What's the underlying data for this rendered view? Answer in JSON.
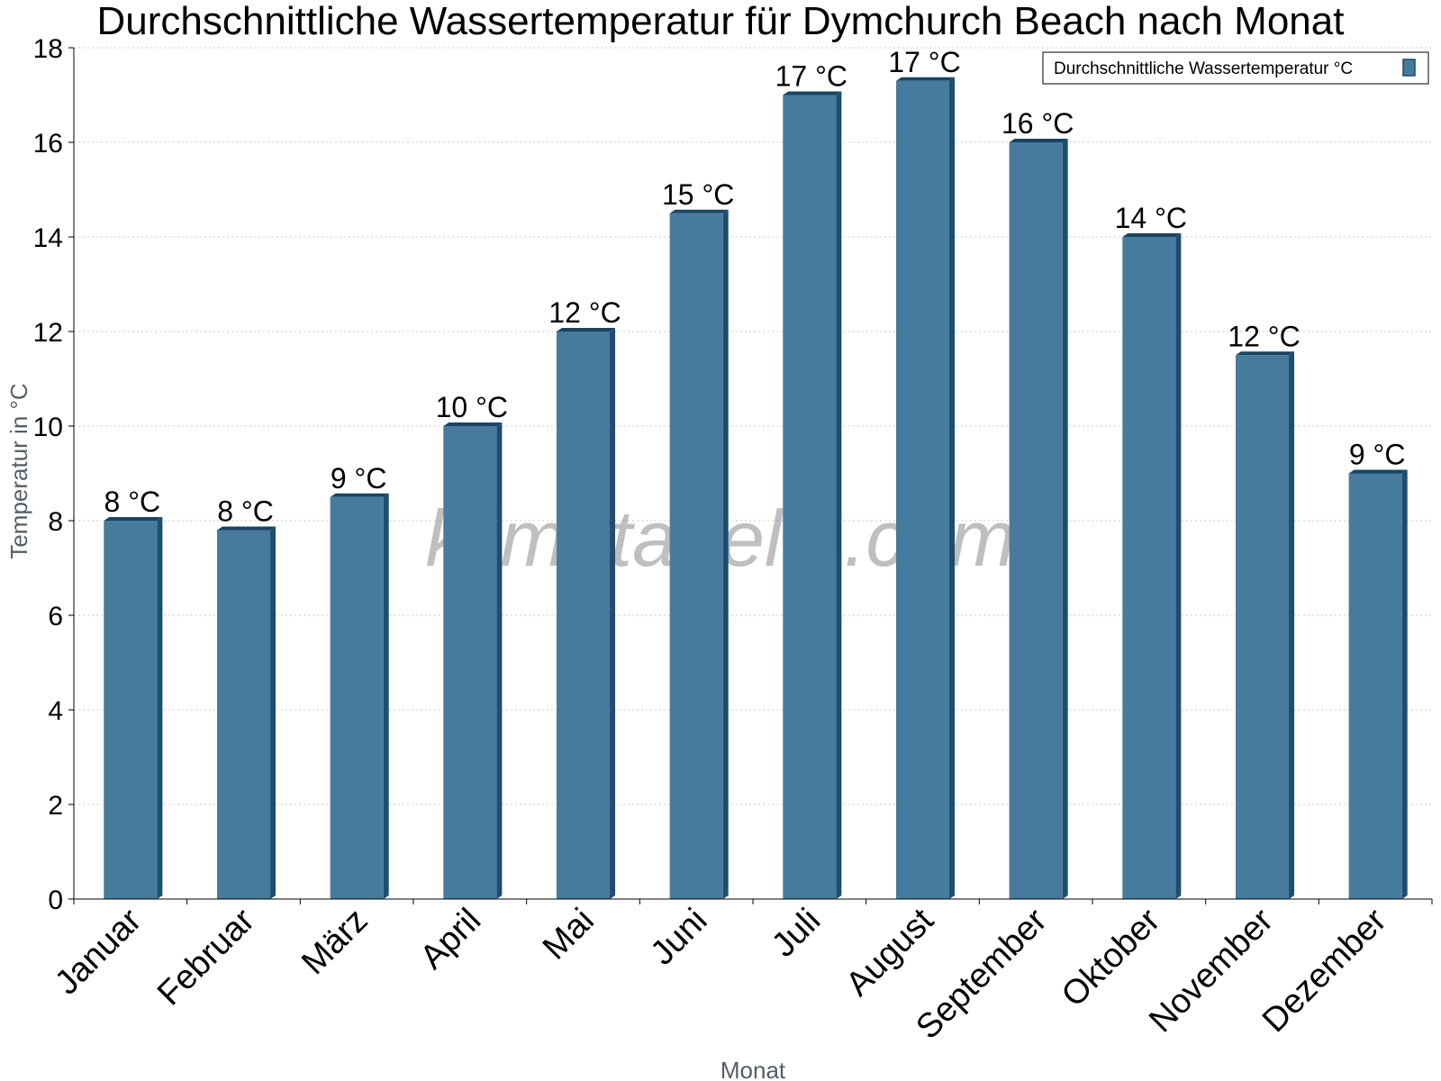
{
  "chart_data": {
    "type": "bar",
    "title": "Durchschnittliche Wassertemperatur für Dymchurch Beach nach Monat",
    "xlabel": "Monat",
    "ylabel": "Temperatur in °C",
    "ylim": [
      0,
      18
    ],
    "yticks": [
      0,
      2,
      4,
      6,
      8,
      10,
      12,
      14,
      16,
      18
    ],
    "grid": true,
    "legend_position": "top-right",
    "categories": [
      "Januar",
      "Februar",
      "März",
      "April",
      "Mai",
      "Juni",
      "Juli",
      "August",
      "September",
      "Oktober",
      "November",
      "Dezember"
    ],
    "series": [
      {
        "name": "Durchschnittliche Wassertemperatur °C",
        "color": "#467b9d",
        "values": [
          8.0,
          7.8,
          8.5,
          10.0,
          12.0,
          14.5,
          17.0,
          17.3,
          16.0,
          14.0,
          11.5,
          9.0
        ],
        "labels": [
          "8 °C",
          "8 °C",
          "9 °C",
          "10 °C",
          "12 °C",
          "15 °C",
          "17 °C",
          "17 °C",
          "16 °C",
          "14 °C",
          "12 °C",
          "9 °C"
        ]
      }
    ],
    "watermark": "klimatabelle.com"
  }
}
